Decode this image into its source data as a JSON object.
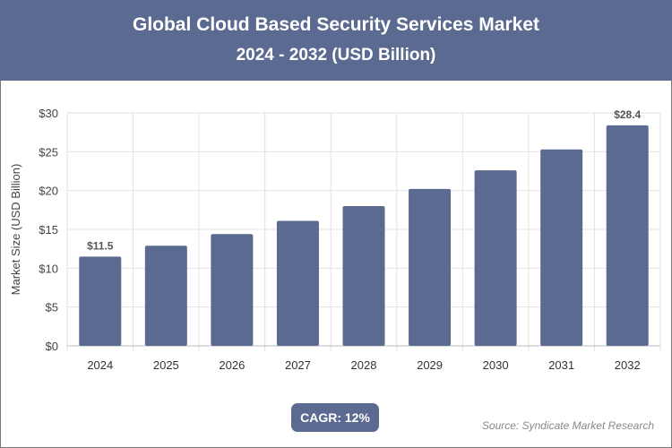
{
  "header": {
    "title": "Global Cloud Based Security Services Market",
    "subtitle": "2024 - 2032 (USD Billion)"
  },
  "chart_data": {
    "type": "bar",
    "title": "Global Cloud Based Security Services Market",
    "subtitle": "2024 - 2032 (USD Billion)",
    "xlabel": "",
    "ylabel": "Market Size (USD Billion)",
    "categories": [
      "2024",
      "2025",
      "2026",
      "2027",
      "2028",
      "2029",
      "2030",
      "2031",
      "2032"
    ],
    "values": [
      11.5,
      12.9,
      14.4,
      16.1,
      18.0,
      20.2,
      22.6,
      25.3,
      28.4
    ],
    "data_labels": {
      "0": "$11.5",
      "8": "$28.4"
    },
    "ylim": [
      0,
      30
    ],
    "yticks": [
      "$0",
      "$5",
      "$10",
      "$15",
      "$20",
      "$25",
      "$30"
    ],
    "grid": true,
    "bar_color": "#5b6a91"
  },
  "footer": {
    "cagr": "CAGR: 12%",
    "source": "Source: Syndicate Market Research"
  }
}
